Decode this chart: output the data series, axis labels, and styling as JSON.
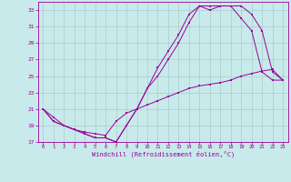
{
  "xlabel": "Windchill (Refroidissement éolien,°C)",
  "bg_color": "#c8eaea",
  "line_color": "#990099",
  "grid_color": "#aacccc",
  "xlim": [
    -0.5,
    23.5
  ],
  "ylim": [
    17,
    34
  ],
  "yticks": [
    17,
    19,
    21,
    23,
    25,
    27,
    29,
    31,
    33
  ],
  "xticks": [
    0,
    1,
    2,
    3,
    4,
    5,
    6,
    7,
    8,
    9,
    10,
    11,
    12,
    13,
    14,
    15,
    16,
    17,
    18,
    19,
    20,
    21,
    22,
    23
  ],
  "series1_x": [
    0,
    1,
    2,
    3,
    4,
    5,
    6,
    7,
    8,
    9,
    10,
    11,
    12,
    13,
    14,
    15,
    16,
    17,
    18,
    19,
    20,
    21,
    22,
    23
  ],
  "series1_y": [
    21,
    19.5,
    19,
    18.5,
    18,
    17.5,
    17.5,
    17,
    19,
    21,
    23.5,
    26,
    28,
    30,
    32.5,
    33.5,
    33,
    33.5,
    33.5,
    32,
    30.5,
    25.5,
    24.5,
    24.5
  ],
  "series2_x": [
    0,
    1,
    2,
    3,
    4,
    5,
    6,
    7,
    8,
    9,
    10,
    11,
    12,
    13,
    14,
    15,
    16,
    17,
    18,
    19,
    20,
    21,
    22,
    23
  ],
  "series2_y": [
    21,
    19.5,
    19,
    18.5,
    18,
    17.5,
    17.5,
    17,
    19,
    21,
    23.5,
    25,
    27,
    29,
    31.5,
    33.5,
    33.5,
    33.5,
    33.5,
    33.5,
    32.5,
    30.5,
    25.5,
    24.5
  ],
  "series3_x": [
    0,
    1,
    2,
    3,
    4,
    5,
    6,
    7,
    8,
    9,
    10,
    11,
    12,
    13,
    14,
    15,
    16,
    17,
    18,
    19,
    20,
    21,
    22,
    23
  ],
  "series3_y": [
    21,
    20,
    19,
    18.5,
    18.2,
    18,
    17.8,
    19.5,
    20.5,
    21,
    21.5,
    22,
    22.5,
    23,
    23.5,
    23.8,
    24,
    24.2,
    24.5,
    25,
    25.3,
    25.6,
    25.8,
    24.5
  ]
}
